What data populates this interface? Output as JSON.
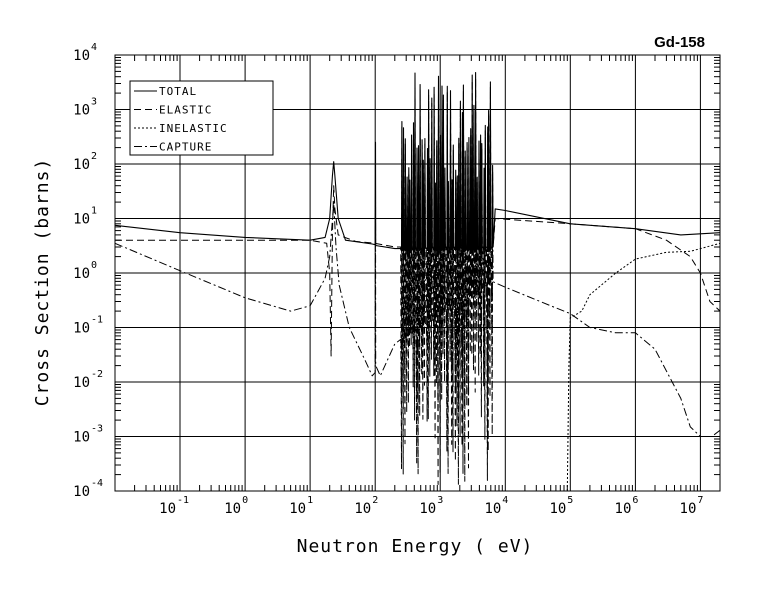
{
  "chart_data": {
    "type": "line",
    "title": "Gd-158",
    "xlabel": "Neutron Energy ( eV)",
    "ylabel": "Cross Section (barns)",
    "x_scale": "log",
    "y_scale": "log",
    "xlim": [
      0.01,
      20000000
    ],
    "ylim": [
      0.0001,
      10000
    ],
    "grid": true,
    "legend_position": "top-left",
    "x_ticks": [
      {
        "value": 0.1,
        "base": "10",
        "exp": "-1"
      },
      {
        "value": 1,
        "base": "10",
        "exp": "0"
      },
      {
        "value": 10,
        "base": "10",
        "exp": "1"
      },
      {
        "value": 100,
        "base": "10",
        "exp": "2"
      },
      {
        "value": 1000,
        "base": "10",
        "exp": "3"
      },
      {
        "value": 10000,
        "base": "10",
        "exp": "4"
      },
      {
        "value": 100000,
        "base": "10",
        "exp": "5"
      },
      {
        "value": 1000000,
        "base": "10",
        "exp": "6"
      },
      {
        "value": 10000000,
        "base": "10",
        "exp": "7"
      }
    ],
    "y_ticks": [
      {
        "value": 0.0001,
        "base": "10",
        "exp": "-4"
      },
      {
        "value": 0.001,
        "base": "10",
        "exp": "-3"
      },
      {
        "value": 0.01,
        "base": "10",
        "exp": "-2"
      },
      {
        "value": 0.1,
        "base": "10",
        "exp": "-1"
      },
      {
        "value": 1,
        "base": "10",
        "exp": "0"
      },
      {
        "value": 10,
        "base": "10",
        "exp": "1"
      },
      {
        "value": 100,
        "base": "10",
        "exp": "2"
      },
      {
        "value": 1000,
        "base": "10",
        "exp": "3"
      },
      {
        "value": 10000,
        "base": "10",
        "exp": "4"
      }
    ],
    "resonance_region": {
      "start": 250,
      "end": 6500
    },
    "series": [
      {
        "name": "TOTAL",
        "dash": "solid",
        "points": [
          [
            0.01,
            7.5
          ],
          [
            0.1,
            5.5
          ],
          [
            1,
            4.5
          ],
          [
            10,
            4
          ],
          [
            17,
            4.5
          ],
          [
            20,
            10
          ],
          [
            22,
            60
          ],
          [
            23,
            110
          ],
          [
            24,
            60
          ],
          [
            27,
            10
          ],
          [
            35,
            4
          ],
          [
            90,
            3.4
          ],
          [
            100,
            3.3
          ],
          [
            101,
            250
          ],
          [
            102,
            3.2
          ],
          [
            200,
            2.8
          ],
          [
            6500,
            3
          ],
          [
            7000,
            15
          ],
          [
            10000,
            14
          ],
          [
            100000,
            8
          ],
          [
            1000000,
            6.5
          ],
          [
            5000000,
            5
          ],
          [
            20000000,
            5.5
          ]
        ]
      },
      {
        "name": "ELASTIC",
        "dash": "dash",
        "points": [
          [
            0.01,
            4
          ],
          [
            1,
            4
          ],
          [
            10,
            4
          ],
          [
            18,
            3.5
          ],
          [
            20,
            1
          ],
          [
            21,
            0.03
          ],
          [
            22,
            5
          ],
          [
            23,
            40
          ],
          [
            24,
            15
          ],
          [
            27,
            5
          ],
          [
            50,
            3.8
          ],
          [
            100,
            3.5
          ],
          [
            200,
            3
          ],
          [
            6500,
            3
          ],
          [
            7000,
            10
          ],
          [
            100000,
            8
          ],
          [
            1000000,
            6.5
          ],
          [
            3000000,
            4
          ],
          [
            7000000,
            2
          ],
          [
            10000000,
            1
          ],
          [
            14000000,
            0.3
          ],
          [
            20000000,
            0.2
          ]
        ]
      },
      {
        "name": "INELASTIC",
        "dash": "dot",
        "points": [
          [
            90000,
            0.0001
          ],
          [
            95000,
            0.02
          ],
          [
            100000,
            0.15
          ],
          [
            150000,
            0.2
          ],
          [
            200000,
            0.4
          ],
          [
            500000,
            1
          ],
          [
            1000000,
            1.8
          ],
          [
            3000000,
            2.4
          ],
          [
            7000000,
            2.5
          ],
          [
            10000000,
            2.8
          ],
          [
            20000000,
            3.5
          ]
        ]
      },
      {
        "name": "CAPTURE",
        "dash": "dashdot",
        "points": [
          [
            0.01,
            3.5
          ],
          [
            0.1,
            1.1
          ],
          [
            1,
            0.35
          ],
          [
            5,
            0.2
          ],
          [
            10,
            0.25
          ],
          [
            17,
            0.8
          ],
          [
            20,
            2
          ],
          [
            23,
            20
          ],
          [
            25,
            3
          ],
          [
            28,
            0.6
          ],
          [
            40,
            0.1
          ],
          [
            70,
            0.025
          ],
          [
            90,
            0.013
          ],
          [
            100,
            0.015
          ],
          [
            101,
            50
          ],
          [
            102,
            0.02
          ],
          [
            120,
            0.013
          ],
          [
            200,
            0.05
          ],
          [
            6500,
            0.7
          ],
          [
            10000,
            0.55
          ],
          [
            50000,
            0.25
          ],
          [
            100000,
            0.18
          ],
          [
            200000,
            0.1
          ],
          [
            500000,
            0.08
          ],
          [
            1000000,
            0.08
          ],
          [
            2000000,
            0.04
          ],
          [
            5000000,
            0.005
          ],
          [
            7000000,
            0.0015
          ],
          [
            10000000,
            0.001
          ],
          [
            15000000,
            0.001
          ],
          [
            20000000,
            0.0013
          ]
        ]
      }
    ]
  }
}
